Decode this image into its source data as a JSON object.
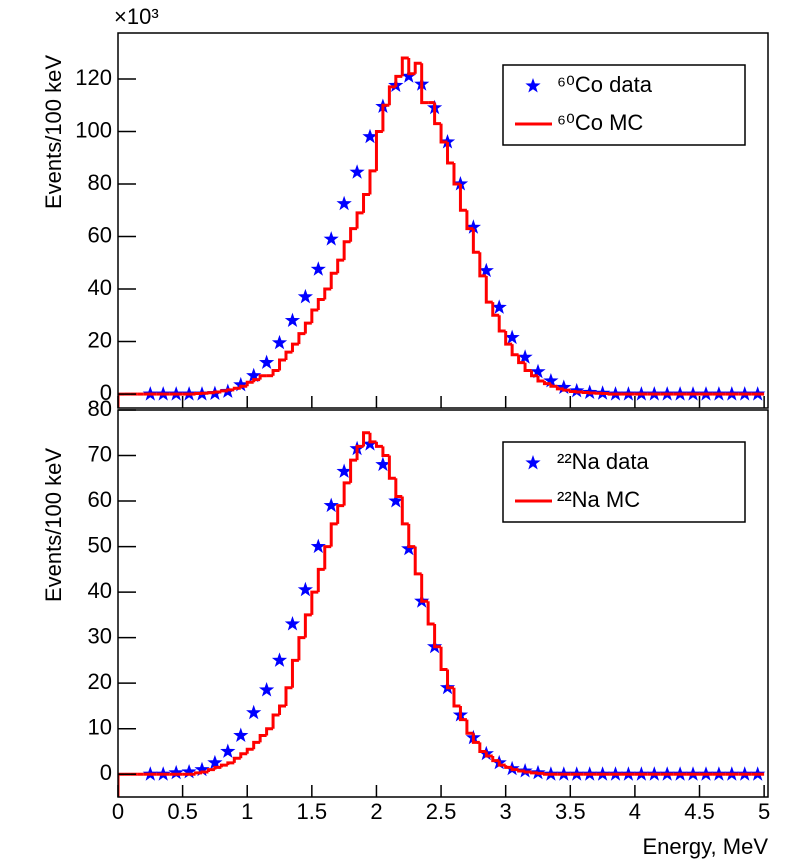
{
  "chart_data": [
    {
      "type": "histogram",
      "y_label": "Events/100 keV",
      "y_multiplier": "×10³",
      "legend": "upper right",
      "xlim": [
        0,
        5.03
      ],
      "xticks": [
        0,
        0.5,
        1,
        1.5,
        2,
        2.5,
        3,
        3.5,
        4,
        4.5,
        5
      ],
      "ylim": [
        -5.3,
        137.5
      ],
      "yticks": [
        0,
        20,
        40,
        60,
        80,
        100,
        120
      ],
      "series": [
        {
          "name": "⁶⁰Co data",
          "color": "#0000ff",
          "kind": "markers",
          "x": [
            0.25,
            0.35,
            0.45,
            0.55,
            0.65,
            0.75,
            0.85,
            0.95,
            1.05,
            1.15,
            1.25,
            1.35,
            1.45,
            1.55,
            1.65,
            1.75,
            1.85,
            1.95,
            2.05,
            2.15,
            2.25,
            2.35,
            2.45,
            2.55,
            2.65,
            2.75,
            2.85,
            2.95,
            3.05,
            3.15,
            3.25,
            3.35,
            3.45,
            3.55,
            3.65,
            3.75,
            3.85,
            3.95,
            4.05,
            4.15,
            4.25,
            4.35,
            4.45,
            4.55,
            4.65,
            4.75,
            4.85,
            4.95
          ],
          "values": [
            0,
            0,
            0,
            0,
            0,
            0.2,
            1,
            3.5,
            7,
            12,
            19.5,
            28,
            37,
            47.5,
            59,
            72.5,
            84.5,
            98,
            109.5,
            117.5,
            121,
            118,
            109,
            96,
            80,
            63.5,
            47,
            33,
            21.5,
            14,
            8.5,
            5,
            2.5,
            1.2,
            0.6,
            0.3,
            0,
            0,
            0,
            0,
            0,
            0,
            0,
            0,
            0,
            0,
            0,
            0
          ]
        },
        {
          "name": "⁶⁰Co MC",
          "color": "#ff0000",
          "kind": "step",
          "bins": [
            0,
            0.05,
            0.1,
            0.15,
            0.2,
            0.25,
            0.3,
            0.35,
            0.4,
            0.45,
            0.5,
            0.55,
            0.6,
            0.65,
            0.7,
            0.75,
            0.8,
            0.85,
            0.9,
            0.95,
            1,
            1.05,
            1.1,
            1.15,
            1.2,
            1.25,
            1.3,
            1.35,
            1.4,
            1.45,
            1.5,
            1.55,
            1.6,
            1.65,
            1.7,
            1.75,
            1.8,
            1.85,
            1.9,
            1.95,
            2,
            2.05,
            2.1,
            2.15,
            2.2,
            2.25,
            2.3,
            2.35,
            2.4,
            2.45,
            2.5,
            2.55,
            2.6,
            2.65,
            2.7,
            2.75,
            2.8,
            2.85,
            2.9,
            2.95,
            3,
            3.05,
            3.1,
            3.15,
            3.2,
            3.25,
            3.3,
            3.35,
            3.4,
            3.45,
            3.5,
            3.55,
            3.6,
            3.65,
            3.7,
            3.75,
            3.8,
            3.85,
            3.9,
            3.95,
            4,
            4.05,
            4.1,
            4.15,
            4.2,
            4.25,
            4.3,
            4.35,
            4.4,
            4.45,
            4.5,
            4.55,
            4.6,
            4.65,
            4.7,
            4.75,
            4.8,
            4.85,
            4.9,
            4.95,
            5
          ],
          "values": [
            0,
            0,
            0,
            0,
            0,
            0,
            0,
            0,
            0,
            0,
            0,
            0,
            0.2,
            0.3,
            0.5,
            0.8,
            1.2,
            1.6,
            2.2,
            3,
            4.5,
            5.5,
            7,
            7,
            9,
            13,
            16,
            19,
            23,
            27,
            32,
            36,
            40,
            46,
            51,
            58,
            63,
            69,
            76,
            85,
            100,
            110,
            117,
            121,
            128,
            122,
            126,
            111,
            111,
            103,
            96,
            88,
            80,
            70,
            63,
            54,
            45,
            35,
            30,
            24,
            19,
            15,
            12,
            9,
            7,
            5,
            4,
            3,
            2,
            1.5,
            1,
            0.8,
            0.6,
            0.4,
            0.3,
            0.2,
            0,
            0,
            0,
            0,
            0,
            0,
            0,
            0,
            0,
            0,
            0,
            0,
            0,
            0,
            0,
            0,
            0,
            0,
            0,
            0,
            0,
            0,
            0,
            0
          ]
        }
      ]
    },
    {
      "type": "histogram",
      "y_label": "Events/100 keV",
      "x_label": "Energy, MeV",
      "legend": "upper right",
      "xlim": [
        0,
        5.03
      ],
      "xticks": [
        0,
        0.5,
        1,
        1.5,
        2,
        2.5,
        3,
        3.5,
        4,
        4.5,
        5
      ],
      "ylim": [
        -5,
        80
      ],
      "yticks": [
        0,
        10,
        20,
        30,
        40,
        50,
        60,
        70,
        80
      ],
      "series": [
        {
          "name": "²²Na data",
          "color": "#0000ff",
          "kind": "markers",
          "x": [
            0.25,
            0.35,
            0.45,
            0.55,
            0.65,
            0.75,
            0.85,
            0.95,
            1.05,
            1.15,
            1.25,
            1.35,
            1.45,
            1.55,
            1.65,
            1.75,
            1.85,
            1.95,
            2.05,
            2.15,
            2.25,
            2.35,
            2.45,
            2.55,
            2.65,
            2.75,
            2.85,
            2.95,
            3.05,
            3.15,
            3.25,
            3.35,
            3.45,
            3.55,
            3.65,
            3.75,
            3.85,
            3.95,
            4.05,
            4.15,
            4.25,
            4.35,
            4.45,
            4.55,
            4.65,
            4.75,
            4.85,
            4.95
          ],
          "values": [
            0,
            0,
            0.3,
            0.5,
            1,
            2.5,
            5,
            8.5,
            13.5,
            18.5,
            25,
            33,
            40.5,
            50,
            59,
            66.5,
            71.5,
            72.5,
            68,
            60,
            49.5,
            38,
            28,
            19,
            13,
            8,
            4.5,
            2.5,
            1.2,
            0.7,
            0.3,
            0,
            0,
            0,
            0,
            0,
            0,
            0,
            0,
            0,
            0,
            0,
            0,
            0,
            0,
            0,
            0,
            0
          ]
        },
        {
          "name": "²²Na MC",
          "color": "#ff0000",
          "kind": "step",
          "bins": [
            0,
            0.05,
            0.1,
            0.15,
            0.2,
            0.25,
            0.3,
            0.35,
            0.4,
            0.45,
            0.5,
            0.55,
            0.6,
            0.65,
            0.7,
            0.75,
            0.8,
            0.85,
            0.9,
            0.95,
            1,
            1.05,
            1.1,
            1.15,
            1.2,
            1.25,
            1.3,
            1.35,
            1.4,
            1.45,
            1.5,
            1.55,
            1.6,
            1.65,
            1.7,
            1.75,
            1.8,
            1.85,
            1.9,
            1.95,
            2,
            2.05,
            2.1,
            2.15,
            2.2,
            2.25,
            2.3,
            2.35,
            2.4,
            2.45,
            2.5,
            2.55,
            2.6,
            2.65,
            2.7,
            2.75,
            2.8,
            2.85,
            2.9,
            2.95,
            3,
            3.05,
            3.1,
            3.15,
            3.2,
            3.25,
            3.3,
            3.35,
            3.4,
            3.45,
            3.5,
            3.55,
            3.6,
            3.65,
            3.7,
            3.75,
            3.8,
            3.85,
            3.9,
            3.95,
            4,
            4.05,
            4.1,
            4.15,
            4.2,
            4.25,
            4.3,
            4.35,
            4.4,
            4.45,
            4.5,
            4.55,
            4.6,
            4.65,
            4.7,
            4.75,
            4.8,
            4.85,
            4.9,
            4.95,
            5
          ],
          "values": [
            0,
            0,
            0,
            0,
            0,
            0,
            0,
            0,
            0,
            0,
            0,
            0,
            0.3,
            0.5,
            1,
            1.5,
            2,
            2.5,
            3.5,
            4.5,
            5.5,
            7,
            8.5,
            10,
            13,
            15,
            19,
            25,
            30,
            35,
            40,
            45,
            50,
            55,
            59,
            64,
            69,
            72,
            75,
            73,
            72,
            70,
            65,
            61,
            55,
            50,
            44,
            38,
            33,
            28,
            23,
            19,
            15,
            12,
            9,
            7,
            5,
            4,
            3,
            2,
            1.5,
            1,
            0.7,
            0.5,
            0.3,
            0.2,
            0,
            0,
            0,
            0,
            0,
            0,
            0,
            0,
            0,
            0,
            0,
            0,
            0,
            0,
            0,
            0,
            0,
            0,
            0,
            0,
            0,
            0,
            0,
            0,
            0,
            0,
            0,
            0,
            0,
            0,
            0,
            0,
            0,
            0
          ]
        }
      ]
    }
  ]
}
